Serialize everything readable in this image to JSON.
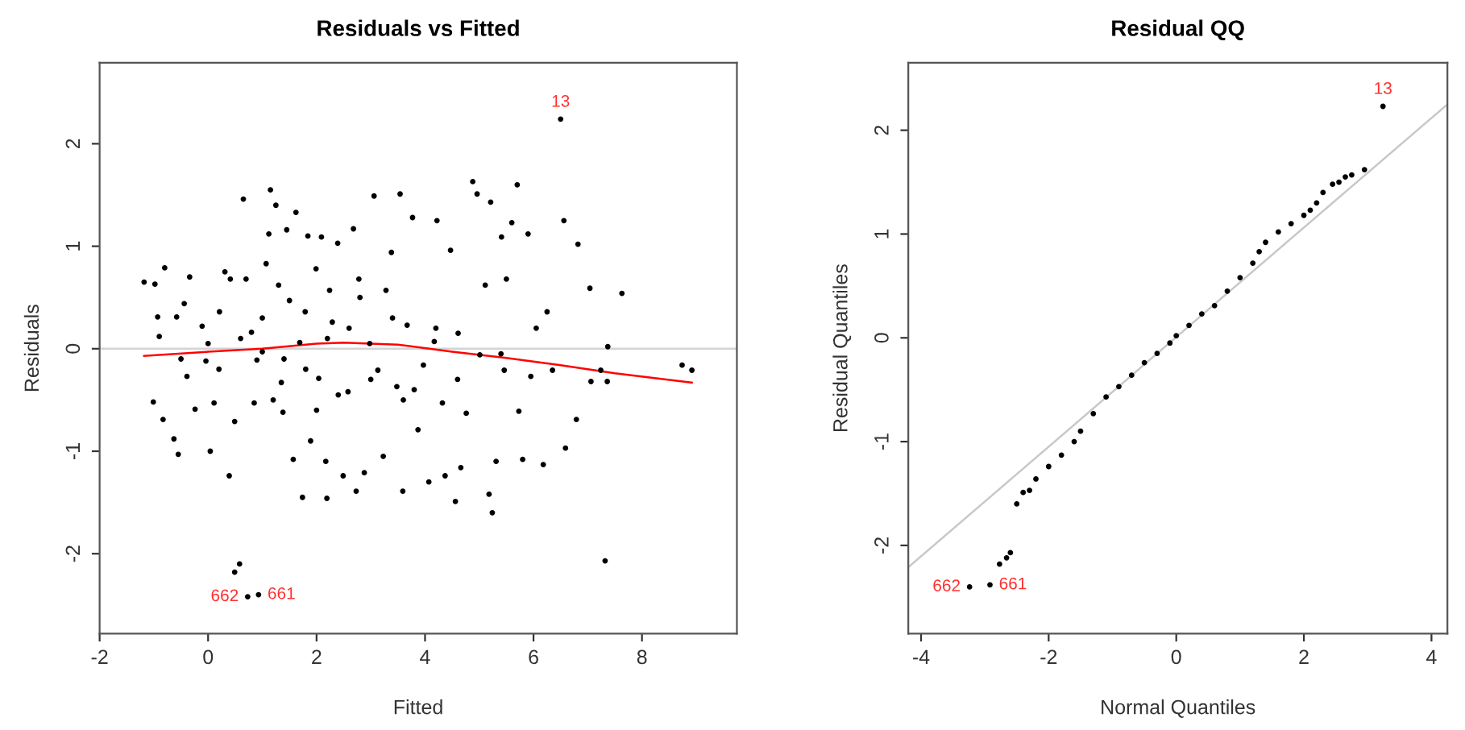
{
  "chart_data": [
    {
      "type": "scatter",
      "title": "Residuals vs Fitted",
      "xlabel": "Fitted",
      "ylabel": "Residuals",
      "xlim": [
        -2,
        9.75
      ],
      "ylim": [
        -2.78,
        2.79
      ],
      "xticks": [
        -2,
        0,
        2,
        4,
        6,
        8
      ],
      "yticks": [
        -2,
        -1,
        0,
        1,
        2
      ],
      "grid": false,
      "legend": false,
      "ref_lines": [
        {
          "axis": "y",
          "value": 0,
          "color": "#d3d3d3"
        }
      ],
      "series": [
        {
          "marker": "circle",
          "color": "#000000",
          "x": [
            -1.18,
            -0.98,
            -0.8,
            -0.93,
            -0.9,
            -1.01,
            -0.83,
            -0.63,
            -0.55,
            -0.58,
            -0.34,
            -0.44,
            -0.39,
            -0.24,
            -0.11,
            -0.04,
            0.04,
            0.11,
            0.21,
            0.31,
            0.41,
            0.39,
            0.49,
            0.65,
            0.7,
            0.8,
            0.85,
            0.9,
            1.0,
            1.07,
            1.12,
            1.15,
            1.25,
            1.3,
            1.35,
            1.38,
            1.45,
            1.5,
            1.57,
            1.62,
            1.69,
            1.74,
            1.79,
            1.84,
            1.89,
            1.99,
            2.04,
            2.09,
            2.17,
            2.19,
            2.24,
            2.29,
            2.39,
            2.49,
            2.58,
            2.68,
            2.73,
            2.78,
            2.88,
            2.98,
            3.06,
            3.13,
            3.23,
            3.28,
            3.38,
            3.48,
            3.54,
            3.59,
            3.67,
            3.77,
            3.87,
            3.97,
            4.07,
            4.17,
            4.22,
            4.32,
            4.37,
            4.47,
            4.56,
            4.61,
            4.66,
            4.76,
            4.88,
            4.96,
            5.01,
            5.11,
            5.18,
            5.21,
            5.24,
            5.31,
            5.41,
            5.46,
            5.5,
            5.6,
            5.7,
            5.73,
            5.8,
            5.9,
            5.95,
            6.05,
            6.18,
            6.25,
            6.35,
            6.5,
            6.56,
            6.59,
            6.82,
            6.79,
            7.04,
            7.06,
            7.24,
            7.37,
            7.36,
            7.63,
            7.32,
            8.74,
            8.92,
            0.49,
            0.58,
            0.73,
            0.93,
            0.2,
            0.6,
            1.0,
            1.4,
            1.8,
            2.2,
            2.6,
            3.0,
            3.4,
            3.8,
            4.2,
            4.6,
            1.2,
            2.0,
            2.8,
            3.6,
            0.0,
            -0.5,
            5.4,
            2.4
          ],
          "values": [
            0.65,
            0.63,
            0.79,
            0.31,
            0.12,
            -0.52,
            -0.69,
            -0.88,
            -1.03,
            0.31,
            0.7,
            0.44,
            -0.27,
            -0.59,
            0.22,
            -0.12,
            -1.0,
            -0.53,
            0.36,
            0.75,
            0.68,
            -1.24,
            -0.71,
            1.46,
            0.68,
            0.16,
            -0.53,
            -0.11,
            -0.03,
            0.83,
            1.12,
            1.55,
            1.4,
            0.62,
            -0.33,
            -0.62,
            1.16,
            0.47,
            -1.08,
            1.33,
            0.06,
            -1.45,
            0.36,
            1.1,
            -0.9,
            0.78,
            -0.29,
            1.09,
            -1.1,
            -1.46,
            0.57,
            0.26,
            1.03,
            -1.24,
            -0.42,
            1.17,
            -1.39,
            0.68,
            -1.21,
            0.05,
            1.49,
            -0.21,
            -1.05,
            0.57,
            0.94,
            -0.37,
            1.51,
            -1.39,
            0.23,
            1.28,
            -0.79,
            -0.16,
            -1.3,
            0.07,
            1.25,
            -0.53,
            -1.24,
            0.96,
            -1.49,
            0.15,
            -1.16,
            -0.63,
            1.63,
            1.51,
            -0.06,
            0.62,
            -1.42,
            1.43,
            -1.6,
            -1.1,
            1.09,
            -0.21,
            0.68,
            1.23,
            1.6,
            -0.61,
            -1.08,
            1.12,
            -0.27,
            0.2,
            -1.13,
            0.36,
            -0.21,
            2.24,
            1.25,
            -0.97,
            1.02,
            -0.69,
            0.59,
            -0.32,
            -0.21,
            0.02,
            -0.32,
            0.54,
            -2.07,
            -0.16,
            -0.21,
            -2.18,
            -2.1,
            -2.42,
            -2.4,
            -0.2,
            0.1,
            0.3,
            -0.1,
            -0.2,
            0.1,
            0.2,
            -0.3,
            0.3,
            -0.4,
            0.2,
            -0.3,
            -0.5,
            -0.6,
            0.5,
            -0.5,
            0.05,
            -0.1,
            -0.05,
            -0.45
          ]
        },
        {
          "type": "line",
          "color": "#ff0000",
          "x": [
            -1.18,
            0,
            1,
            2,
            2.5,
            3.5,
            4.5,
            5.5,
            6.5,
            7.5,
            8.92
          ],
          "values": [
            -0.07,
            -0.03,
            0.0,
            0.05,
            0.06,
            0.04,
            -0.03,
            -0.09,
            -0.16,
            -0.24,
            -0.33
          ]
        }
      ],
      "annotations": [
        {
          "text": "13",
          "x": 6.5,
          "y": 2.24
        },
        {
          "text": "662",
          "x": 0.73,
          "y": -2.42
        },
        {
          "text": "661",
          "x": 0.93,
          "y": -2.4
        }
      ]
    },
    {
      "type": "scatter",
      "title": "Residual QQ",
      "xlabel": "Normal Quantiles",
      "ylabel": "Residual Quantiles",
      "xlim": [
        -4.2,
        4.25
      ],
      "ylim": [
        -2.85,
        2.65
      ],
      "xticks": [
        -4,
        -2,
        0,
        2,
        4
      ],
      "yticks": [
        -2,
        -1,
        0,
        1,
        2
      ],
      "grid": false,
      "legend": false,
      "series": [
        {
          "type": "line",
          "color": "#c8c8c8",
          "x": [
            -4.2,
            4.25
          ],
          "values": [
            -2.21,
            2.25
          ]
        },
        {
          "marker": "circle",
          "color": "#000000",
          "x": [
            -3.24,
            -2.92,
            -2.77,
            -2.66,
            -2.6,
            -2.5,
            -2.4,
            -2.3,
            -2.2,
            -2.0,
            -1.8,
            -1.6,
            -1.5,
            -1.3,
            -1.1,
            -0.9,
            -0.7,
            -0.5,
            -0.3,
            -0.1,
            0,
            0.2,
            0.4,
            0.6,
            0.8,
            1.0,
            1.2,
            1.3,
            1.4,
            1.6,
            1.8,
            2.0,
            2.1,
            2.2,
            2.3,
            2.45,
            2.55,
            2.65,
            2.75,
            2.95,
            3.24
          ],
          "values": [
            -2.4,
            -2.38,
            -2.18,
            -2.12,
            -2.07,
            -1.6,
            -1.49,
            -1.47,
            -1.36,
            -1.24,
            -1.13,
            -1.0,
            -0.9,
            -0.73,
            -0.57,
            -0.47,
            -0.36,
            -0.24,
            -0.15,
            -0.05,
            0.02,
            0.12,
            0.23,
            0.31,
            0.45,
            0.58,
            0.72,
            0.83,
            0.92,
            1.02,
            1.1,
            1.18,
            1.23,
            1.3,
            1.4,
            1.48,
            1.5,
            1.55,
            1.57,
            1.62,
            2.23
          ]
        }
      ],
      "annotations": [
        {
          "text": "13",
          "x": 3.24,
          "y": 2.23
        },
        {
          "text": "662",
          "x": -3.24,
          "y": -2.4
        },
        {
          "text": "661",
          "x": -2.92,
          "y": -2.38
        }
      ]
    }
  ]
}
